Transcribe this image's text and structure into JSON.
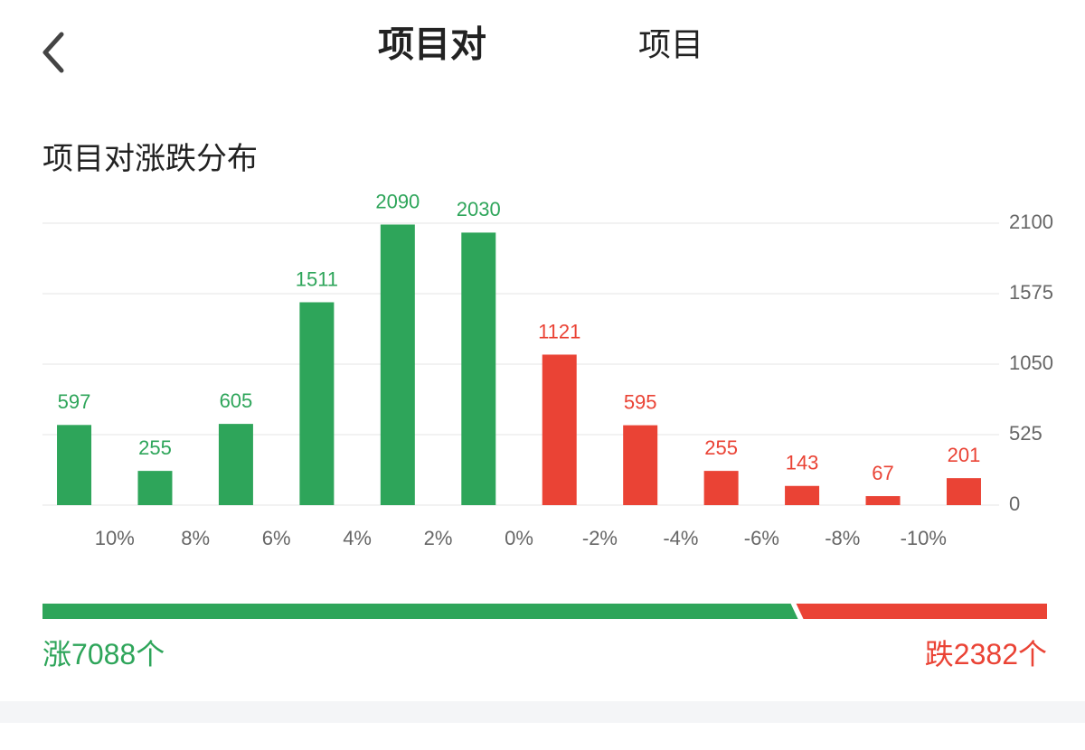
{
  "header": {
    "tabs": [
      "项目对",
      "项目"
    ]
  },
  "section_title": "项目对涨跌分布",
  "chart_data": {
    "type": "bar",
    "categories": [
      null,
      null,
      null,
      null,
      null,
      null,
      null,
      null,
      null,
      null,
      null,
      null
    ],
    "values": [
      597,
      255,
      605,
      1511,
      2090,
      2030,
      1121,
      595,
      255,
      143,
      67,
      201
    ],
    "colors": [
      "#2ea55a",
      "#2ea55a",
      "#2ea55a",
      "#2ea55a",
      "#2ea55a",
      "#2ea55a",
      "#ea4335",
      "#ea4335",
      "#ea4335",
      "#ea4335",
      "#ea4335",
      "#ea4335"
    ],
    "ylim": [
      0,
      2100
    ],
    "yticks": [
      0,
      525,
      1050,
      1575,
      2100
    ],
    "grid": true,
    "xlim": [
      12,
      -12
    ],
    "xticks": [
      {
        "value": 10,
        "label": "10%"
      },
      {
        "value": 8,
        "label": "8%"
      },
      {
        "value": 6,
        "label": "6%"
      },
      {
        "value": 4,
        "label": "4%"
      },
      {
        "value": 2,
        "label": "2%"
      },
      {
        "value": 0,
        "label": "0%"
      },
      {
        "value": -2,
        "label": "-2%"
      },
      {
        "value": -4,
        "label": "-4%"
      },
      {
        "value": -6,
        "label": "-6%"
      },
      {
        "value": -8,
        "label": "-8%"
      },
      {
        "value": -10,
        "label": "-10%"
      }
    ]
  },
  "summary": {
    "rise_label": "涨",
    "rise": 7088,
    "fall_label": "跌",
    "fall": 2382,
    "unit": "个",
    "rise_color": "#2ea55a",
    "fall_color": "#ea4335"
  }
}
